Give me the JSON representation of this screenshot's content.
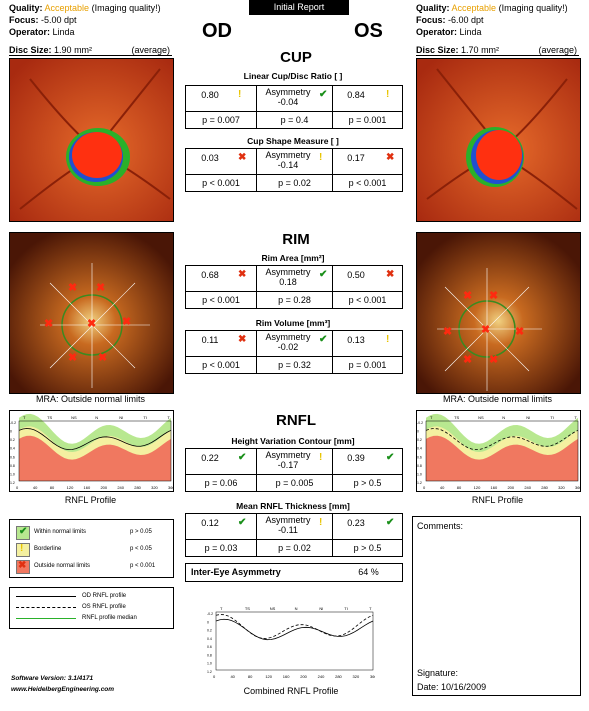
{
  "banner": "Initial Report",
  "od": {
    "quality_label": "Quality:",
    "quality_value": "Acceptable",
    "quality_note": "(Imaging quality!)",
    "focus_label": "Focus:",
    "focus_value": "-5.00 dpt",
    "operator_label": "Operator:",
    "operator_value": "Linda",
    "eye": "OD",
    "disc_label": "Disc Size:",
    "disc_value": "1.90 mm²",
    "disc_note": "(average)",
    "mra": "MRA: Outside normal limits",
    "rnfl_caption": "RNFL Profile"
  },
  "os": {
    "quality_label": "Quality:",
    "quality_value": "Acceptable",
    "quality_note": "(Imaging quality!)",
    "focus_label": "Focus:",
    "focus_value": "-6.00 dpt",
    "operator_label": "Operator:",
    "operator_value": "Linda",
    "eye": "OS",
    "disc_label": "Disc Size:",
    "disc_value": "1.70 mm²",
    "disc_note": "(average)",
    "mra": "MRA: Outside normal limits",
    "rnfl_caption": "RNFL Profile"
  },
  "sections": {
    "cup": "CUP",
    "rim": "RIM",
    "rnfl": "RNFL"
  },
  "metrics": [
    {
      "title": "Linear Cup/Disc Ratio [ ]",
      "od": "0.80",
      "od_icon": "warn",
      "asym_label": "Asymmetry",
      "asym": "-0.04",
      "asym_icon": "ok",
      "os": "0.84",
      "os_icon": "warn",
      "p_od": "p = 0.007",
      "p_asym": "p = 0.4",
      "p_os": "p = 0.001"
    },
    {
      "title": "Cup Shape Measure [ ]",
      "od": "0.03",
      "od_icon": "bad",
      "asym_label": "Asymmetry",
      "asym": "-0.14",
      "asym_icon": "warn",
      "os": "0.17",
      "os_icon": "bad",
      "p_od": "p < 0.001",
      "p_asym": "p = 0.02",
      "p_os": "p < 0.001"
    },
    {
      "title": "Rim Area [mm²]",
      "od": "0.68",
      "od_icon": "bad",
      "asym_label": "Asymmetry",
      "asym": "0.18",
      "asym_icon": "ok",
      "os": "0.50",
      "os_icon": "bad",
      "p_od": "p < 0.001",
      "p_asym": "p = 0.28",
      "p_os": "p < 0.001"
    },
    {
      "title": "Rim Volume [mm³]",
      "od": "0.11",
      "od_icon": "bad",
      "asym_label": "Asymmetry",
      "asym": "-0.02",
      "asym_icon": "ok",
      "os": "0.13",
      "os_icon": "warn",
      "p_od": "p < 0.001",
      "p_asym": "p = 0.32",
      "p_os": "p = 0.001"
    },
    {
      "title": "Height Variation Contour [mm]",
      "od": "0.22",
      "od_icon": "ok",
      "asym_label": "Asymmetry",
      "asym": "-0.17",
      "asym_icon": "warn",
      "os": "0.39",
      "os_icon": "ok",
      "p_od": "p = 0.06",
      "p_asym": "p = 0.005",
      "p_os": "p > 0.5"
    },
    {
      "title": "Mean RNFL Thickness [mm]",
      "od": "0.12",
      "od_icon": "ok",
      "asym_label": "Asymmetry",
      "asym": "-0.11",
      "asym_icon": "warn",
      "os": "0.23",
      "os_icon": "ok",
      "p_od": "p = 0.03",
      "p_asym": "p = 0.02",
      "p_os": "p > 0.5"
    }
  ],
  "inter_eye": {
    "label": "Inter-Eye Asymmetry",
    "value": "64 %"
  },
  "legend": {
    "within": "Within normal limits",
    "within_p": "p > 0.05",
    "border": "Borderline",
    "border_p": "p < 0.05",
    "outside": "Outside normal limits",
    "outside_p": "p < 0.001",
    "od_profile": "OD RNFL profile",
    "os_profile": "OS RNFL profile",
    "median": "RNFL profile median"
  },
  "sectors": [
    "T",
    "TS",
    "NS",
    "N",
    "NI",
    "TI",
    "T"
  ],
  "x_ticks": [
    "0",
    "40",
    "80",
    "120",
    "160",
    "200",
    "240",
    "280",
    "320",
    "360"
  ],
  "y_ticks": [
    "-0.2",
    "0",
    "0.2",
    "0.4",
    "0.6",
    "0.8",
    "1.0",
    "1.2"
  ],
  "combined_caption": "Combined RNFL Profile",
  "comments_label": "Comments:",
  "signature_label": "Signature:",
  "date_label": "Date:",
  "date_value": "10/16/2009",
  "software": "Software Version: 3.1/4171",
  "website": "www.HeidelbergEngineering.com",
  "colors": {
    "ok": "#1a8f1a",
    "warn": "#e8c400",
    "bad": "#e03010",
    "accent": "#e8a000"
  }
}
